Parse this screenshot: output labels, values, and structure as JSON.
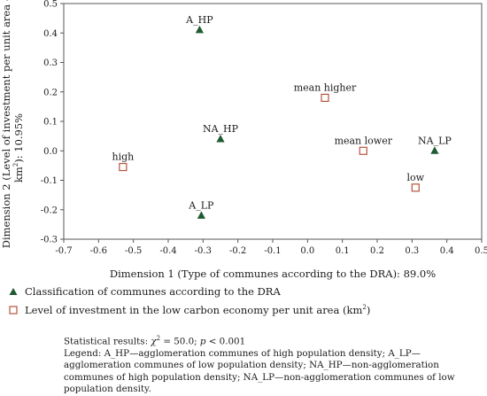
{
  "chart_data": {
    "type": "scatter",
    "xlabel": "Dimension 1 (Type of communes according to the DRA): 89.0%",
    "ylabel_main": "Dimension 2 (Level of investment per unit area -",
    "ylabel_unit": "km",
    "ylabel_sup": "2",
    "ylabel_tail": "): 10.95%",
    "xlim": [
      -0.7,
      0.5
    ],
    "ylim": [
      -0.3,
      0.5
    ],
    "x_ticks": [
      "-0.7",
      "-0.6",
      "-0.5",
      "-0.4",
      "-0.3",
      "-0.2",
      "-0.1",
      "0.0",
      "0.1",
      "0.2",
      "0.3",
      "0.4",
      "0.5"
    ],
    "y_ticks": [
      "0.5",
      "0.4",
      "0.3",
      "0.2",
      "0.1",
      "0.0",
      "-0.1",
      "-0.2",
      "-0.3"
    ],
    "grid": false,
    "series": [
      {
        "name": "Classification of communes according to the DRA",
        "marker": "triangle",
        "color": "#1e5a32",
        "points": [
          {
            "label": "A_HP",
            "x": -0.31,
            "y": 0.41
          },
          {
            "label": "NA_HP",
            "x": -0.25,
            "y": 0.04
          },
          {
            "label": "NA_LP",
            "x": 0.365,
            "y": 0.0
          },
          {
            "label": "A_LP",
            "x": -0.305,
            "y": -0.22
          }
        ]
      },
      {
        "name_main": "Level of investment in the low carbon economy per unit area (km",
        "name_sup": "2",
        "name_tail": ")",
        "marker": "square",
        "color": "#b5533c",
        "points": [
          {
            "label": "mean higher",
            "x": 0.05,
            "y": 0.18
          },
          {
            "label": "mean lower",
            "x": 0.16,
            "y": 0.0
          },
          {
            "label": "high",
            "x": -0.53,
            "y": -0.055
          },
          {
            "label": "low",
            "x": 0.31,
            "y": -0.125
          }
        ]
      }
    ]
  },
  "stats": {
    "prefix": "Statistical results: ",
    "chi_symbol": "χ",
    "chi_sup": "2",
    "chi_value": " = 50.0; ",
    "p_symbol": "p",
    "p_value": " < 0.001",
    "legend_text": "Legend: A_HP—agglomeration communes of high population density; A_LP—agglomeration communes of low population density; NA_HP—non-agglomeration communes of high population density; NA_LP—non-agglomeration communes of low population density."
  }
}
